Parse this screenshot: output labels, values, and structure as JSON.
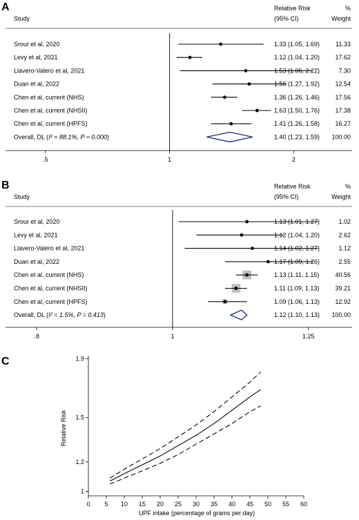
{
  "chart_data": [
    {
      "type": "forest",
      "panel": "A",
      "header": {
        "study": "Study",
        "rr": "Relative Risk",
        "ci": "(95% CI)",
        "pct": "%",
        "weight": "Weight"
      },
      "rows": [
        {
          "study": "Srour et al, 2020",
          "rr": 1.33,
          "lo": 1.05,
          "hi": 1.69,
          "ci_text": "1.33 (1.05, 1.69)",
          "weight": "11.33"
        },
        {
          "study": "Levy et al, 2021",
          "rr": 1.12,
          "lo": 1.04,
          "hi": 1.2,
          "ci_text": "1.12 (1.04, 1.20)",
          "weight": "17.62"
        },
        {
          "study": "Llavero-Valero et al, 2021",
          "rr": 1.53,
          "lo": 1.06,
          "hi": 2.22,
          "ci_text": "1.53 (1.06, 2.22)",
          "weight": "7.30"
        },
        {
          "study": "Duan et al, 2022",
          "rr": 1.56,
          "lo": 1.27,
          "hi": 1.92,
          "ci_text": "1.56 (1.27, 1.92)",
          "weight": "12.54"
        },
        {
          "study": "Chen et al, current (NHS)",
          "rr": 1.36,
          "lo": 1.26,
          "hi": 1.46,
          "ci_text": "1.36 (1.26, 1.46)",
          "weight": "17.56"
        },
        {
          "study": "Chen et al, current (NHSII)",
          "rr": 1.63,
          "lo": 1.5,
          "hi": 1.76,
          "ci_text": "1.63 (1.50, 1.76)",
          "weight": "17.38"
        },
        {
          "study": "Chen et al, current (HPFS)",
          "rr": 1.41,
          "lo": 1.26,
          "hi": 1.58,
          "ci_text": "1.41 (1.26, 1.58)",
          "weight": "16.27"
        }
      ],
      "overall": {
        "label_pre": "Overall, DL (",
        "i2": "I² = 88.1%, ",
        "p": "P = 0.000",
        "label_post": ")",
        "rr": 1.4,
        "lo": 1.23,
        "hi": 1.59,
        "ci_text": "1.40 (1.23, 1.59)",
        "weight": "100.00"
      },
      "x_scale": "log",
      "xlim": [
        0.4,
        2.75
      ],
      "xticks": [
        {
          "value": 0.5,
          "label": ".5"
        },
        {
          "value": 1,
          "label": "1"
        },
        {
          "value": 2,
          "label": "2"
        }
      ]
    },
    {
      "type": "forest",
      "panel": "B",
      "header": {
        "study": "Study",
        "rr": "Relative Risk",
        "ci": "(95% CI)",
        "pct": "%",
        "weight": "Weight"
      },
      "rows": [
        {
          "study": "Srour et al, 2020",
          "rr": 1.13,
          "lo": 1.01,
          "hi": 1.27,
          "ci_text": "1.13 (1.01, 1.27)",
          "weight": "1.02"
        },
        {
          "study": "Levy et al, 2021",
          "rr": 1.12,
          "lo": 1.04,
          "hi": 1.2,
          "ci_text": "1.12 (1.04, 1.20)",
          "weight": "2.62"
        },
        {
          "study": "Llavero-Valero et al, 2021",
          "rr": 1.14,
          "lo": 1.02,
          "hi": 1.27,
          "ci_text": "1.14 (1.02, 1.27)",
          "weight": "1.12"
        },
        {
          "study": "Duan et al, 2022",
          "rr": 1.17,
          "lo": 1.09,
          "hi": 1.26,
          "ci_text": "1.17 (1.09, 1.26)",
          "weight": "2.55"
        },
        {
          "study": "Chen et al, current (NHS)",
          "rr": 1.13,
          "lo": 1.11,
          "hi": 1.15,
          "ci_text": "1.13 (1.11, 1.15)",
          "weight": "40.56"
        },
        {
          "study": "Chen et al, current (NHSII)",
          "rr": 1.11,
          "lo": 1.09,
          "hi": 1.13,
          "ci_text": "1.11 (1.09, 1.13)",
          "weight": "39.21"
        },
        {
          "study": "Chen et al, current (HPFS)",
          "rr": 1.09,
          "lo": 1.06,
          "hi": 1.13,
          "ci_text": "1.09 (1.06, 1.13)",
          "weight": "12.92"
        }
      ],
      "overall": {
        "label_pre": "Overall, DL (",
        "i2": "I² = 1.5%, ",
        "p": "P = 0.413",
        "label_post": ")",
        "rr": 1.12,
        "lo": 1.1,
        "hi": 1.13,
        "ci_text": "1.12 (1.10, 1.13)",
        "weight": "100.00"
      },
      "x_scale": "log",
      "xlim": [
        0.76,
        1.34
      ],
      "xticks": [
        {
          "value": 0.8,
          "label": ".8"
        },
        {
          "value": 1,
          "label": "1"
        },
        {
          "value": 1.25,
          "label": "1.25"
        }
      ]
    },
    {
      "type": "line",
      "panel": "C",
      "xlabel": "UPF intake (percentage of grams per day)",
      "ylabel": "Relative Risk",
      "xlim": [
        0,
        60
      ],
      "ylim": [
        0.97,
        1.92
      ],
      "xticks": [
        0,
        5,
        10,
        15,
        20,
        25,
        30,
        35,
        40,
        45,
        50,
        55,
        60
      ],
      "yticks": [
        {
          "value": 1,
          "label": "1"
        },
        {
          "value": 1.2,
          "label": "1.2"
        },
        {
          "value": 1.5,
          "label": "1.5"
        },
        {
          "value": 1.9,
          "label": "1.9"
        }
      ],
      "x": [
        6,
        10,
        15,
        20,
        25,
        30,
        35,
        40,
        45,
        48
      ],
      "series": [
        {
          "style": "solid",
          "values": [
            1.07,
            1.12,
            1.18,
            1.24,
            1.31,
            1.38,
            1.46,
            1.55,
            1.64,
            1.69
          ]
        },
        {
          "style": "dashed",
          "values": [
            1.09,
            1.15,
            1.22,
            1.29,
            1.37,
            1.45,
            1.54,
            1.64,
            1.74,
            1.81
          ]
        },
        {
          "style": "dashed",
          "values": [
            1.05,
            1.09,
            1.14,
            1.19,
            1.25,
            1.32,
            1.39,
            1.46,
            1.54,
            1.58
          ]
        }
      ]
    }
  ],
  "panel_labels": [
    "A",
    "B",
    "C"
  ]
}
